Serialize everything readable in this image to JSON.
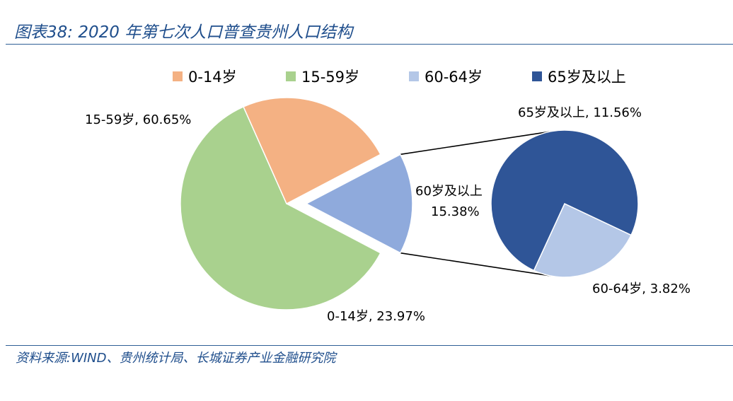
{
  "header": {
    "title": "图表38:  2020 年第七次人口普查贵州人口结构"
  },
  "footer": {
    "source": "资料来源:WIND、贵州统计局、长城证券产业金融研究院"
  },
  "colors": {
    "age_0_14": "#f4b183",
    "age_15_59": "#a9d18e",
    "age_60_plus": "#8faadc",
    "age_60_64": "#b4c7e7",
    "age_65_plus": "#2f5597",
    "title_blue": "#1f4e8c"
  },
  "chart_data": {
    "type": "pie",
    "subtype": "pie-of-pie",
    "title": "",
    "legend": {
      "position": "top",
      "entries": [
        "0-14岁",
        "15-59岁",
        "60-64岁",
        "65岁及以上"
      ]
    },
    "main_pie": [
      {
        "name": "15-59岁",
        "value": 60.65,
        "label": "15-59岁, 60.65%"
      },
      {
        "name": "0-14岁",
        "value": 23.97,
        "label": "0-14岁, 23.97%"
      },
      {
        "name": "60岁及以上",
        "value": 15.38,
        "label_line1": "60岁及以上",
        "label_line2": "15.38%"
      }
    ],
    "secondary_pie": [
      {
        "name": "65岁及以上",
        "value": 11.56,
        "label": "65岁及以上, 11.56%"
      },
      {
        "name": "60-64岁",
        "value": 3.82,
        "label": "60-64岁, 3.82%"
      }
    ]
  }
}
